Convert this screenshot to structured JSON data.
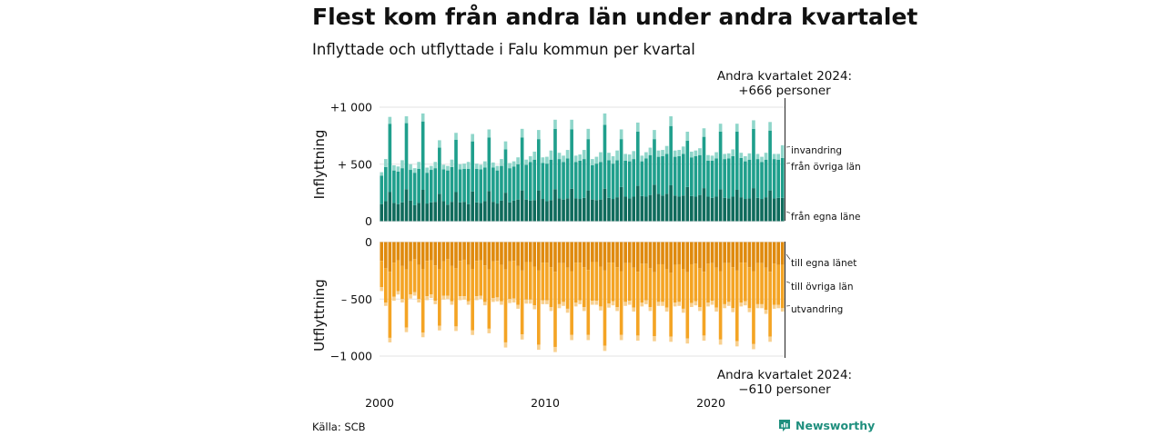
{
  "header": {
    "title": "Flest kom från andra län under andra kvartalet",
    "subtitle": "Inflyttade och utflyttade i Falu kommun per kvartal"
  },
  "footer": {
    "source": "Källa: SCB",
    "brand": "Newsworthy"
  },
  "colors": {
    "in_egna": "#0f6b5c",
    "in_ovriga": "#1f9f8c",
    "in_invandring": "#8fd6ca",
    "ut_egna": "#df8a0e",
    "ut_ovriga": "#f4a424",
    "ut_utvandring": "#f8d08f"
  },
  "chart_data": {
    "type": "bar",
    "stacked": true,
    "x_start": "2000 Q1",
    "x_end": "2024 Q2",
    "x_ticks": [
      "2000",
      "2010",
      "2020"
    ],
    "panels": [
      {
        "name": "inflyttning",
        "ylabel": "Inflyttning",
        "ylim": [
          0,
          1000
        ],
        "y_ticks": [
          "0",
          "+  500",
          "+1 000"
        ],
        "annotation": [
          "Andra kvartalet 2024:",
          "+666 personer"
        ],
        "series": [
          {
            "name": "från egna läne",
            "values": [
              150,
              175,
              255,
              160,
              150,
              165,
              280,
              180,
              140,
              160,
              275,
              155,
              165,
              170,
              240,
              175,
              145,
              170,
              255,
              165,
              170,
              150,
              260,
              165,
              160,
              175,
              265,
              170,
              155,
              180,
              250,
              165,
              180,
              190,
              270,
              190,
              180,
              185,
              270,
              195,
              175,
              185,
              280,
              200,
              190,
              200,
              285,
              200,
              195,
              205,
              270,
              190,
              185,
              190,
              285,
              205,
              195,
              210,
              300,
              215,
              200,
              215,
              310,
              220,
              215,
              230,
              320,
              240,
              225,
              240,
              315,
              225,
              215,
              225,
              300,
              220,
              215,
              230,
              290,
              215,
              205,
              215,
              280,
              205,
              200,
              215,
              275,
              210,
              195,
              200,
              290,
              205,
              195,
              210,
              270,
              200,
              205,
              205
            ]
          },
          {
            "name": "från övriga län",
            "values": [
              250,
              300,
              600,
              285,
              285,
              300,
              580,
              270,
              285,
              300,
              600,
              270,
              285,
              295,
              405,
              280,
              300,
              305,
              460,
              290,
              290,
              310,
              440,
              295,
              295,
              295,
              470,
              300,
              290,
              305,
              380,
              300,
              300,
              310,
              465,
              305,
              340,
              355,
              450,
              315,
              330,
              355,
              530,
              345,
              330,
              350,
              520,
              320,
              335,
              340,
              450,
              300,
              320,
              330,
              560,
              330,
              310,
              325,
              420,
              315,
              325,
              330,
              475,
              305,
              335,
              350,
              400,
              325,
              345,
              350,
              520,
              340,
              355,
              365,
              405,
              340,
              355,
              350,
              450,
              315,
              325,
              335,
              505,
              340,
              350,
              355,
              510,
              345,
              330,
              340,
              520,
              340,
              325,
              330,
              525,
              345,
              335,
              350
            ]
          },
          {
            "name": "invandring",
            "values": [
              30,
              70,
              60,
              45,
              45,
              70,
              60,
              50,
              40,
              60,
              70,
              45,
              35,
              55,
              65,
              40,
              40,
              65,
              60,
              45,
              45,
              60,
              65,
              45,
              40,
              55,
              70,
              45,
              40,
              60,
              70,
              45,
              45,
              60,
              75,
              45,
              50,
              70,
              80,
              50,
              60,
              80,
              80,
              55,
              55,
              75,
              85,
              55,
              55,
              80,
              90,
              55,
              60,
              85,
              100,
              65,
              65,
              85,
              85,
              60,
              60,
              70,
              80,
              50,
              55,
              65,
              80,
              55,
              55,
              70,
              85,
              55,
              55,
              65,
              80,
              50,
              50,
              60,
              75,
              50,
              45,
              55,
              70,
              45,
              45,
              60,
              70,
              45,
              45,
              55,
              75,
              45,
              45,
              60,
              75,
              45,
              50,
              111
            ]
          }
        ]
      },
      {
        "name": "utflyttning",
        "ylabel": "Utflyttning",
        "ylim": [
          -1000,
          0
        ],
        "y_ticks": [
          "0",
          "–  500",
          "−1 000"
        ],
        "annotation": [
          "Andra kvartalet 2024:",
          "−610 personer"
        ],
        "series": [
          {
            "name": "till egna länet",
            "values": [
              -165,
              -230,
              -260,
              -180,
              -160,
              -210,
              -240,
              -170,
              -150,
              -200,
              -235,
              -165,
              -160,
              -205,
              -235,
              -170,
              -150,
              -210,
              -230,
              -165,
              -155,
              -200,
              -235,
              -165,
              -160,
              -205,
              -240,
              -170,
              -165,
              -200,
              -240,
              -170,
              -165,
              -210,
              -250,
              -175,
              -175,
              -215,
              -250,
              -180,
              -180,
              -220,
              -260,
              -185,
              -185,
              -225,
              -255,
              -180,
              -180,
              -220,
              -245,
              -175,
              -175,
              -215,
              -250,
              -180,
              -180,
              -220,
              -255,
              -185,
              -185,
              -225,
              -260,
              -190,
              -190,
              -230,
              -265,
              -195,
              -195,
              -235,
              -270,
              -200,
              -195,
              -235,
              -265,
              -195,
              -190,
              -230,
              -260,
              -190,
              -185,
              -225,
              -255,
              -185,
              -185,
              -220,
              -250,
              -180,
              -180,
              -220,
              -255,
              -185,
              -185,
              -225,
              -260,
              -190,
              -200,
              -200
            ]
          },
          {
            "name": "till övriga län",
            "values": [
              -230,
              -300,
              -580,
              -300,
              -270,
              -290,
              -510,
              -290,
              -290,
              -300,
              -560,
              -310,
              -300,
              -310,
              -500,
              -300,
              -320,
              -310,
              -510,
              -310,
              -320,
              -320,
              -540,
              -310,
              -310,
              -320,
              -520,
              -320,
              -320,
              -320,
              -640,
              -330,
              -330,
              -340,
              -560,
              -330,
              -330,
              -340,
              -650,
              -330,
              -330,
              -350,
              -660,
              -360,
              -340,
              -360,
              -560,
              -350,
              -330,
              -350,
              -570,
              -340,
              -340,
              -350,
              -660,
              -360,
              -340,
              -350,
              -560,
              -340,
              -330,
              -350,
              -560,
              -340,
              -320,
              -340,
              -560,
              -330,
              -330,
              -340,
              -560,
              -330,
              -330,
              -350,
              -580,
              -340,
              -330,
              -340,
              -560,
              -340,
              -330,
              -350,
              -600,
              -360,
              -340,
              -360,
              -620,
              -350,
              -340,
              -360,
              -640,
              -360,
              -360,
              -370,
              -570,
              -360,
              -350,
              -380
            ]
          },
          {
            "name": "utvandring",
            "values": [
              -35,
              -30,
              -40,
              -35,
              -30,
              -30,
              -40,
              -35,
              -30,
              -30,
              -40,
              -35,
              -30,
              -30,
              -40,
              -35,
              -30,
              -30,
              -40,
              -35,
              -30,
              -30,
              -40,
              -35,
              -30,
              -30,
              -40,
              -35,
              -35,
              -30,
              -45,
              -35,
              -35,
              -35,
              -45,
              -35,
              -35,
              -35,
              -45,
              -35,
              -35,
              -35,
              -45,
              -35,
              -35,
              -35,
              -45,
              -35,
              -35,
              -35,
              -45,
              -35,
              -35,
              -35,
              -45,
              -35,
              -35,
              -35,
              -45,
              -35,
              -35,
              -35,
              -45,
              -35,
              -35,
              -35,
              -45,
              -35,
              -35,
              -35,
              -45,
              -35,
              -35,
              -35,
              -45,
              -35,
              -35,
              -35,
              -45,
              -35,
              -35,
              -35,
              -45,
              -35,
              -35,
              -35,
              -45,
              -35,
              -35,
              -35,
              -45,
              -35,
              -35,
              -35,
              -45,
              -35,
              -30,
              -30
            ]
          }
        ]
      }
    ]
  }
}
